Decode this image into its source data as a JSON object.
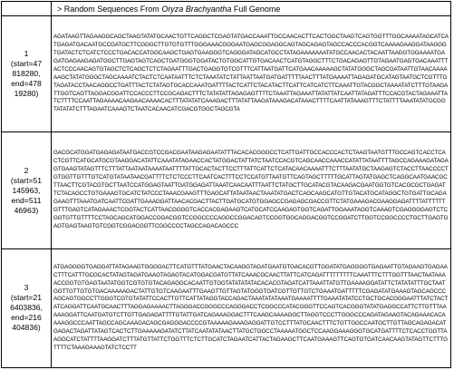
{
  "header": {
    "prefix": "> Random Sequences From ",
    "organism": "Oryza Brachyantha",
    "suffix": " Full Genome"
  },
  "rows": [
    {
      "number": "1",
      "range_lines": [
        "(start=47",
        "818280,",
        "end=478",
        "19280)"
      ],
      "sequence": "AGATAAGTTAGAAGGCAGCTAAGTATATGCAACTGTTCAGGCTCGAGTATGACCAAATTGCCAACACTTCACTGGCTAAGTCAGTGGTTTGGCAAAATAGCATCATGAGATGACAATGCCGATGCTTCGGGCTTGTGTGTTTGGGAAACGGGAATGAGCGGAGGCAGTAGCAGAGTAGCCACCCACGGTCAAAAGAAGGATAAGGGTGATACTCTCATCTCCCTGACACCATGGCAAGCTGAGTGAAGGGTCAGGGATAGCATGCCTATAGAAAAAAATATGCCAACACTACAATTAAGGTGGAAAATGAGATGAGAAGAGATGGCTTGAGTAGTCAGCTGATGGGTGGATACTGTGGCATTGTGACAACTCATGTAGGCTTTCTGACAGAGTTGTAGAATGAGTGACAAATTTACTCCCAACAGTGTAGCTCTCAGCTCTCTAGAATTTGACTGAGGTGTCGTTTCATTAATGATTCATGAACAAAAAGCTATATGGGCTAGCGATAATTGTAACAAAAAAGCTATATGGGCTAGCAAAATCTACTCTCAATAATTTCTCTAAATATCTATTAATTAATGATGATTTTTAACTTTATGAAAATTAGAGATGCATAGTAATGCTCGTTTGTAGATACCTAACAGGCCTGATTTACTCTATAGTGCACCAAATGATTTTACTCATTCTACATACTTCATTCATCATCTTCAAATTGTACGGCTAAAATATCTTTGTAAGATTGGTCAGTTAGGACGGATTCCACCCTTCCGCAGACTTTCTATATATTAGAGAGTTTTCTAAATTAGAAATTATATTATCAATTATAGATTTCCACGTACTAGAAATTATCTTTTCCAATTAGAAAACAAGAACAAAACACTTTATATATCAAAGACTTTATATTAAGATAAAGACATAAACTTTTCAATTATAAAGTTTCTATTTTAAATATATGCGGTATATATCTTTAGAATCAAAGTCTAATCACAACATCGACGTGGCTAGCGTA"
    },
    {
      "number": "2",
      "range_lines": [
        "(start=51",
        "145963,",
        "end=511",
        "46963)"
      ],
      "sequence": "GACGCATGGATGAGAGATAATGACCGTCCGACGAATAAGAGAATATTTACACACGGGCCTCATTGATTGCCACCCACTCTAAGTAATGTTTGCCAGTCACCTCACTCGTTCATGCATGCGTAAGGACATATTCAAATATAGAACCACTATGGACTATTATCTAATCCACGTCAGCAACCAAACCATATTATAATTTTAGCCAGAAAGATAGAGTGAAGTATAGTTTCTTTATTAATAATAAAATAATTTTATTGCACTACTTCCTTTATTCATTCTCATACAACAAAATTTCTTTAATATGCTAAGAGTCTACCTTAACCCCTGTGGTTGTTTGTCATGTATAATAACGATTTTCTCTCCCTTCAATCACTTTCCTCCATGTTAATGTTCAGTAGCTTTTTGCATTAGTATGAGCTCAGGCAATGAACGCTTAACTTCGTACGTGCTTAATCCATGGAGTAATTGATGGAGATTAAATCAACAATTTAATTCTATGCTTGCATACGTACAAGACGAATGGTGTCACGCGCTGAGATTCTACAGCCTGTGAAAGTGCATCTATCCCTAAACGAAGTTTGAGCATTATAATAACTAAATATGACTCAGCAAGCATGTTGTACATGCATAGGCTGTGATTGCAGAGAAGTTTAAATGATCAATTCGATTGAAAGGATTAACACGACTTACTTGATGCATGTGGAGCCGAGAGCGACCGTTCTATGAAAGACGAAGGAGATTTTATTTTTTGTTTGAGTCATAGAAACTCGGTACTCATTAACGGGGTCACCACGAGAAGTCATGCATCCAAGAGTGGTCAGATTGGAAATAGGTCAAAGTCGAGGGGAGTCTCGGTGTTGTTTTCCTAGCAGCATGGACCGGACGGTCCGGCCCCAGGCCGGACAGTCCGGTGGCAGGACGGTCCGGATCTTGGTCCGGCCCCTGCTTGAGTGAGTGAGTAAGTGTCGGTCGGACGGTTCGGCCCCTAGCCAGACAGCCC"
    },
    {
      "number": "3",
      "range_lines": [
        "(start=21",
        "6403836,",
        "end=216",
        "404836)"
      ],
      "sequence": "ATGAGGGGTGAGGATTATAGAAGTGGGGACTTCATGTTTATGAACTACAAGGTAGATGAATGTGACACGTTGGATATGAGGGGTGAGAATTGTAGAAGTGAGAACTTTCATTTGCGCACTATAGTAGATGAAGTAGAGTACATGGACGATGTTATCAAACGCAACTTATTCATCAGATTTTTTTTTCAAATTTCTTTGGTTTAACTAATAAAACCGGTGTGAGTAATATGGTCGTGTGTACAGAGGCACAATTGTGGTATATATATACACACGTAGATCATTAAATTATGTTGAAAAGGATATTCTATATATTTGCTAATGGTTGTTGTGTGACAAAAAGACTATTGTGTCAAGAATTTGAAGTTGTTAGTATGGGTGATCGTTGTTGTCTGAAATGATTTTTCGAGATATGAAAGTAGCAGCCCAGCAGTGGCCTTGGGTCGTGTATATTCCACTTGTTCATTATAGGTACCAGACTAAATATATAAATGAAAATTTTGAAATATATCCTGCTGCACGGGAATTTATCTACTATCAGGATTCAATGCAACTTTAGGAGAAAACTTAGGGACCGGGCCCAGGGACCTCGGCCCATACGGGTTCCAGTCACGGGTATATGAGGCCATTCTTGTTTAAAAAGGATTCAATGATGTCTTGTTGAGAGATTTTGTATTGATCAGAAAGGACTTTCAAGCAAAAGGCTTAGGTCCCTTGGGCCCAGATAGAAGTACAGAAACACAAAAGGCCCAATTAGCCAGCAAAGACAGCGAGGGACCCCGTAAAAAGAAAGAGGATTGTCCTTTATGCAACTTTCTGTTGGCCAATGCTTGTTAGCAGAGACATGAGACTAGATTATAGTCACTCTTGAAAAAGATATCTTATCAATATATAACTTATGCTGGCCTAAAAATGGCTCCAAGGAAAGGGTGCATGATTTTCTCACCTGGTTAAGGCATCTATTTTAAGGATCTTTATGTTATTCTGGTTTCTCTTGCATCTAGAATCATTACTAGAAGCTTCAATGAAAGTTCAGTGTGATCAACAAGTATAGTTCTTTGTTTTCTAAAGAAAGTATCTCCTT"
    }
  ]
}
